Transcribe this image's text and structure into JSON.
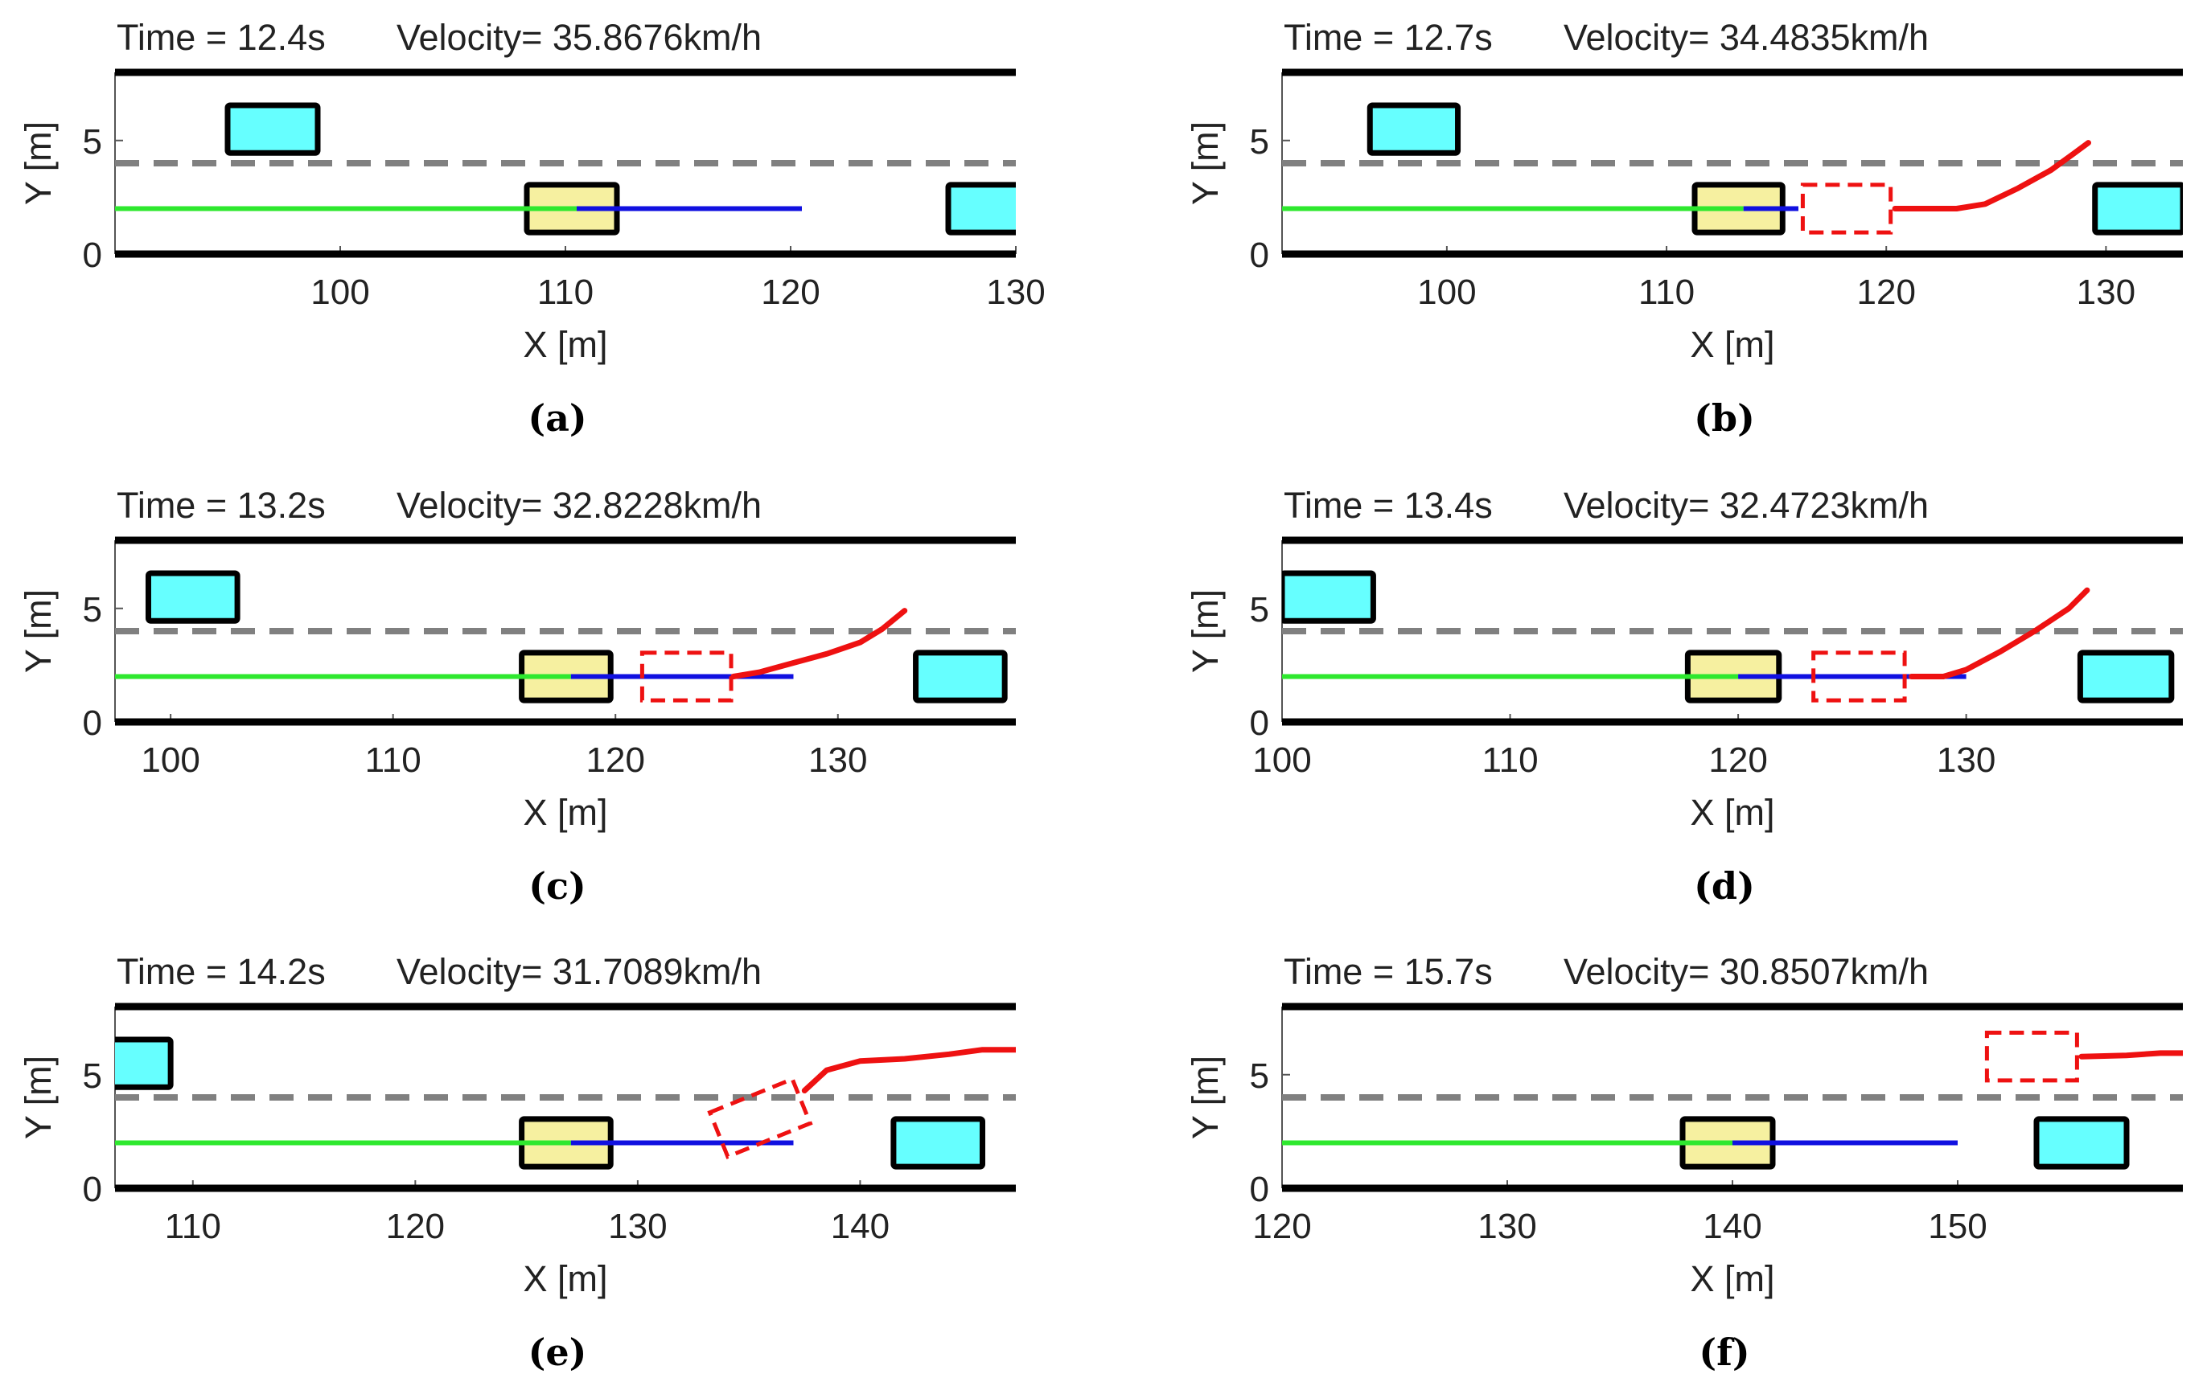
{
  "figure": {
    "description_free": true
  },
  "chart_data": [
    {
      "type": "trajectory",
      "caption": "(a)",
      "time_label": "Time = 12.4s",
      "velocity_label": "Velocity= 35.8676km/h",
      "xlabel": "X [m]",
      "ylabel": "Y [m]",
      "xlim": [
        90,
        130
      ],
      "ylim": [
        0,
        8
      ],
      "xticks": [
        100,
        110,
        120,
        130
      ],
      "yticks": [
        0,
        5
      ],
      "dashed_lane_y": 4,
      "road_edges_y": [
        0,
        8
      ],
      "ego": {
        "x": 110.5,
        "y": 2
      },
      "obstacles": [
        {
          "x": 97,
          "y": 5.5
        },
        {
          "x": 129,
          "y": 2
        }
      ],
      "past_path": [
        [
          90,
          2
        ],
        [
          110.5,
          2
        ]
      ],
      "planned_path": [
        [
          110.5,
          2
        ],
        [
          120.5,
          2
        ]
      ],
      "predicted": null,
      "predicted_path": []
    },
    {
      "type": "trajectory",
      "caption": "(b)",
      "time_label": "Time = 12.7s",
      "velocity_label": "Velocity= 34.4835km/h",
      "xlabel": "X [m]",
      "ylabel": "Y [m]",
      "xlim": [
        92.5,
        133.5
      ],
      "ylim": [
        0,
        8
      ],
      "xticks": [
        100,
        110,
        120,
        130
      ],
      "yticks": [
        0,
        5
      ],
      "dashed_lane_y": 4,
      "road_edges_y": [
        0,
        8
      ],
      "ego": {
        "x": 113.5,
        "y": 2
      },
      "obstacles": [
        {
          "x": 98.5,
          "y": 5.5
        },
        {
          "x": 131.5,
          "y": 2
        }
      ],
      "past_path": [
        [
          92.5,
          2
        ],
        [
          113.5,
          2
        ]
      ],
      "planned_path": [
        [
          113.5,
          2
        ],
        [
          116,
          2
        ]
      ],
      "predicted": {
        "x": 118.2,
        "y": 2,
        "angle": 0
      },
      "predicted_path": [
        [
          120.4,
          2
        ],
        [
          122,
          2
        ],
        [
          123.2,
          2
        ],
        [
          124.5,
          2.2
        ],
        [
          126,
          2.9
        ],
        [
          127.5,
          3.7
        ],
        [
          128.5,
          4.4
        ],
        [
          129.2,
          4.9
        ]
      ]
    },
    {
      "type": "trajectory",
      "caption": "(c)",
      "time_label": "Time = 13.2s",
      "velocity_label": "Velocity= 32.8228km/h",
      "xlabel": "X [m]",
      "ylabel": "Y [m]",
      "xlim": [
        97.5,
        138
      ],
      "ylim": [
        0,
        8
      ],
      "xticks": [
        100,
        110,
        120,
        130
      ],
      "yticks": [
        0,
        5
      ],
      "dashed_lane_y": 4,
      "road_edges_y": [
        0,
        8
      ],
      "ego": {
        "x": 118,
        "y": 2
      },
      "obstacles": [
        {
          "x": 101,
          "y": 5.5
        },
        {
          "x": 135.5,
          "y": 2
        }
      ],
      "past_path": [
        [
          97.5,
          2
        ],
        [
          118,
          2
        ]
      ],
      "planned_path": [
        [
          118,
          2
        ],
        [
          128,
          2
        ]
      ],
      "predicted": {
        "x": 123.2,
        "y": 2,
        "angle": 0
      },
      "predicted_path": [
        [
          125.3,
          2
        ],
        [
          126.5,
          2.2
        ],
        [
          128,
          2.6
        ],
        [
          129.5,
          3
        ],
        [
          131,
          3.5
        ],
        [
          132,
          4.1
        ],
        [
          133,
          4.9
        ]
      ]
    },
    {
      "type": "trajectory",
      "caption": "(d)",
      "time_label": "Time = 13.4s",
      "velocity_label": "Velocity= 32.4723km/h",
      "xlabel": "X [m]",
      "ylabel": "Y [m]",
      "xlim": [
        100,
        139.5
      ],
      "ylim": [
        0,
        8
      ],
      "xticks": [
        100,
        110,
        120,
        130
      ],
      "yticks": [
        0,
        5
      ],
      "dashed_lane_y": 4,
      "road_edges_y": [
        0,
        8
      ],
      "ego": {
        "x": 120,
        "y": 2
      },
      "obstacles": [
        {
          "x": 102,
          "y": 5.5
        },
        {
          "x": 137,
          "y": 2
        }
      ],
      "past_path": [
        [
          100,
          2
        ],
        [
          120,
          2
        ]
      ],
      "planned_path": [
        [
          120,
          2
        ],
        [
          130,
          2
        ]
      ],
      "predicted": {
        "x": 125.3,
        "y": 2,
        "angle": 0
      },
      "predicted_path": [
        [
          127.6,
          2
        ],
        [
          129,
          2
        ],
        [
          130,
          2.3
        ],
        [
          131.5,
          3.1
        ],
        [
          133,
          4
        ],
        [
          134.5,
          5
        ],
        [
          135.3,
          5.8
        ]
      ]
    },
    {
      "type": "trajectory",
      "caption": "(e)",
      "time_label": "Time = 14.2s",
      "velocity_label": "Velocity= 31.7089km/h",
      "xlabel": "X [m]",
      "ylabel": "Y [m]",
      "xlim": [
        106.5,
        147
      ],
      "ylim": [
        0,
        8
      ],
      "xticks": [
        110,
        120,
        130,
        140
      ],
      "yticks": [
        0,
        5
      ],
      "dashed_lane_y": 4,
      "road_edges_y": [
        0,
        8
      ],
      "ego": {
        "x": 127,
        "y": 2
      },
      "obstacles": [
        {
          "x": 107,
          "y": 5.5
        },
        {
          "x": 143.5,
          "y": 2
        }
      ],
      "past_path": [
        [
          106.5,
          2
        ],
        [
          127,
          2
        ]
      ],
      "planned_path": [
        [
          127,
          2
        ],
        [
          137,
          2
        ]
      ],
      "predicted": {
        "x": 135.5,
        "y": 3.1,
        "angle": 22
      },
      "predicted_path": [
        [
          137.5,
          4.3
        ],
        [
          138.5,
          5.2
        ],
        [
          140,
          5.6
        ],
        [
          142,
          5.7
        ],
        [
          144,
          5.9
        ],
        [
          145.5,
          6.1
        ],
        [
          147,
          6.1
        ]
      ]
    },
    {
      "type": "trajectory",
      "caption": "(f)",
      "time_label": "Time = 15.7s",
      "velocity_label": "Velocity= 30.8507km/h",
      "xlabel": "X [m]",
      "ylabel": "Y [m]",
      "xlim": [
        120,
        160
      ],
      "ylim": [
        0,
        8
      ],
      "xticks": [
        120,
        130,
        140,
        150
      ],
      "yticks": [
        0,
        5
      ],
      "dashed_lane_y": 4,
      "road_edges_y": [
        0,
        8
      ],
      "ego": {
        "x": 140,
        "y": 2
      },
      "obstacles": [
        {
          "x": 155.5,
          "y": 2
        }
      ],
      "past_path": [
        [
          120,
          2
        ],
        [
          140,
          2
        ]
      ],
      "planned_path": [
        [
          140,
          2
        ],
        [
          150,
          2
        ]
      ],
      "predicted": {
        "x": 153.3,
        "y": 5.8,
        "angle": 0
      },
      "predicted_path": [
        [
          155.5,
          5.8
        ],
        [
          157.5,
          5.85
        ],
        [
          159,
          5.95
        ],
        [
          160,
          5.95
        ]
      ]
    }
  ],
  "colors": {
    "road_edge": "#000000",
    "dashed_lane": "#808080",
    "obstacle_fill": "#66ffff",
    "ego_fill": "#f6f0a0",
    "past_path": "#2ee82e",
    "planned_path": "#1010e0",
    "predicted": "#ee1111",
    "text": "#222222",
    "caption": "#000000"
  }
}
